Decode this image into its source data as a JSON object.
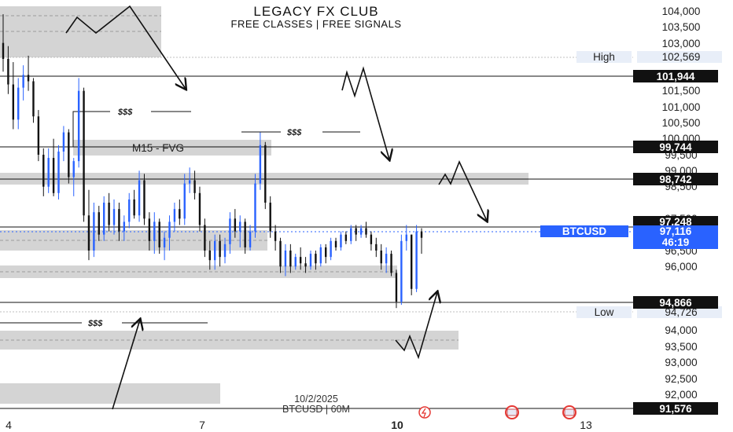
{
  "chart_data": {
    "type": "candlestick",
    "title": "LEGACY FX CLUB",
    "subtitle": "FREE CLASSES | FREE SIGNALS",
    "symbol_label": "BTCUSD",
    "footer_date": "10/2/2025",
    "footer_symbol": "BTCUSD | 60M",
    "ylim": [
      91400,
      104300
    ],
    "y_ticks": [
      "92,000",
      "92,500",
      "93,000",
      "93,500",
      "94,000",
      "96,000",
      "96,500",
      "97,500",
      "98,500",
      "99,000",
      "99,500",
      "100,000",
      "100,500",
      "101,000",
      "101,500",
      "103,000",
      "103,500",
      "104,000"
    ],
    "x_ticks": [
      "4",
      "7",
      "10",
      "13"
    ],
    "price_tags": [
      {
        "value": 101944,
        "label": "101,944",
        "style": "dark"
      },
      {
        "value": 99744,
        "label": "99,744",
        "style": "dark"
      },
      {
        "value": 98742,
        "label": "98,742",
        "style": "dark"
      },
      {
        "value": 97248,
        "label": "97,248",
        "style": "dark"
      },
      {
        "value": 94866,
        "label": "94,866",
        "style": "dark"
      },
      {
        "value": 91576,
        "label": "91,576",
        "style": "dark"
      }
    ],
    "high": {
      "label": "High",
      "value": 102569,
      "value_label": "102,569"
    },
    "low": {
      "label": "Low",
      "value": 94726,
      "value_label": "94,726"
    },
    "current": {
      "value": 97116,
      "value_label": "97,116",
      "countdown": "46:19",
      "color": "#2962ff"
    },
    "zone_labels": [
      "M15 - FVG"
    ],
    "annotations": [
      "$$$",
      "$$$",
      "$$$"
    ],
    "colors": {
      "up": "#2962ff",
      "down": "#111111",
      "zone": "#d4d4d4",
      "tag_dark": "#111111",
      "accent": "#2962ff"
    },
    "grid": false,
    "bars": [
      [
        103000,
        103900,
        102100,
        102500
      ],
      [
        102500,
        102900,
        101400,
        101700
      ],
      [
        101700,
        102400,
        100300,
        100600
      ],
      [
        100600,
        101900,
        100300,
        101600
      ],
      [
        101600,
        102300,
        101200,
        102000
      ],
      [
        102000,
        102600,
        101500,
        101800
      ],
      [
        101800,
        101900,
        100500,
        100700
      ],
      [
        100700,
        100900,
        99300,
        99500
      ],
      [
        99500,
        99700,
        98200,
        98500
      ],
      [
        98500,
        99700,
        98300,
        99400
      ],
      [
        99400,
        100000,
        98200,
        98300
      ],
      [
        98300,
        99800,
        98100,
        99600
      ],
      [
        99600,
        100400,
        99300,
        100200
      ],
      [
        100200,
        100300,
        98600,
        98800
      ],
      [
        98800,
        99400,
        98200,
        99300
      ],
      [
        99300,
        101900,
        99100,
        101500
      ],
      [
        101500,
        101600,
        97400,
        97600
      ],
      [
        97600,
        98400,
        96200,
        96500
      ],
      [
        96500,
        98000,
        96300,
        97700
      ],
      [
        97700,
        97900,
        96800,
        97000
      ],
      [
        97000,
        98200,
        96800,
        98000
      ],
      [
        98000,
        98300,
        97100,
        97300
      ],
      [
        97300,
        98100,
        97000,
        97800
      ],
      [
        97800,
        98000,
        96800,
        97100
      ],
      [
        97100,
        97600,
        96800,
        97400
      ],
      [
        97400,
        98300,
        97200,
        98100
      ],
      [
        98100,
        98400,
        97500,
        97600
      ],
      [
        97600,
        99000,
        97400,
        98700
      ],
      [
        98700,
        98900,
        97300,
        97500
      ],
      [
        97500,
        97700,
        96500,
        96800
      ],
      [
        96800,
        97700,
        96400,
        97400
      ],
      [
        97400,
        97500,
        96400,
        96600
      ],
      [
        96600,
        97100,
        96200,
        96900
      ],
      [
        96900,
        97600,
        96500,
        97400
      ],
      [
        97400,
        98000,
        97100,
        97800
      ],
      [
        97800,
        98100,
        97300,
        97500
      ],
      [
        97500,
        98900,
        97300,
        98600
      ],
      [
        98600,
        99100,
        98300,
        98700
      ],
      [
        98700,
        99000,
        98100,
        98300
      ],
      [
        98300,
        98500,
        97100,
        97300
      ],
      [
        97300,
        97500,
        96300,
        96500
      ],
      [
        96500,
        96800,
        95900,
        96200
      ],
      [
        96200,
        97000,
        95900,
        96800
      ],
      [
        96800,
        97000,
        96000,
        96300
      ],
      [
        96300,
        96900,
        96100,
        96700
      ],
      [
        96700,
        97700,
        96400,
        97500
      ],
      [
        97500,
        97800,
        96900,
        97100
      ],
      [
        97100,
        97600,
        96600,
        97400
      ],
      [
        97400,
        97500,
        96400,
        96600
      ],
      [
        96600,
        97300,
        96500,
        97100
      ],
      [
        97100,
        98900,
        96900,
        98600
      ],
      [
        98600,
        100200,
        98400,
        99800
      ],
      [
        99800,
        99900,
        97800,
        98000
      ],
      [
        98000,
        98200,
        96900,
        97100
      ],
      [
        97100,
        97300,
        96500,
        96800
      ],
      [
        96800,
        96900,
        95800,
        96000
      ],
      [
        96000,
        96700,
        95700,
        96500
      ],
      [
        96500,
        96700,
        95800,
        96000
      ],
      [
        96000,
        96400,
        95900,
        96300
      ],
      [
        96300,
        96600,
        95900,
        96100
      ],
      [
        96100,
        96300,
        95800,
        96000
      ],
      [
        96000,
        96500,
        95900,
        96400
      ],
      [
        96400,
        96500,
        95900,
        96100
      ],
      [
        96100,
        96700,
        96000,
        96600
      ],
      [
        96600,
        96700,
        96100,
        96300
      ],
      [
        96300,
        96900,
        96200,
        96800
      ],
      [
        96800,
        96900,
        96500,
        96600
      ],
      [
        96600,
        97100,
        96500,
        97000
      ],
      [
        97000,
        97100,
        96700,
        96800
      ],
      [
        96800,
        97300,
        96700,
        97200
      ],
      [
        97200,
        97300,
        96800,
        97000
      ],
      [
        97000,
        97300,
        96900,
        97200
      ],
      [
        97200,
        97400,
        96900,
        97000
      ],
      [
        97000,
        97100,
        96500,
        96700
      ],
      [
        96700,
        96900,
        96300,
        96500
      ],
      [
        96500,
        96700,
        95900,
        96100
      ],
      [
        96100,
        96600,
        95800,
        96400
      ],
      [
        96400,
        96500,
        95700,
        95800
      ],
      [
        95800,
        95900,
        94700,
        94900
      ],
      [
        94900,
        97000,
        94800,
        96800
      ],
      [
        96800,
        97300,
        96500,
        97000
      ],
      [
        97000,
        97000,
        95100,
        95300
      ],
      [
        95300,
        97300,
        95200,
        97100
      ],
      [
        97100,
        97200,
        96400,
        96900
      ]
    ]
  }
}
